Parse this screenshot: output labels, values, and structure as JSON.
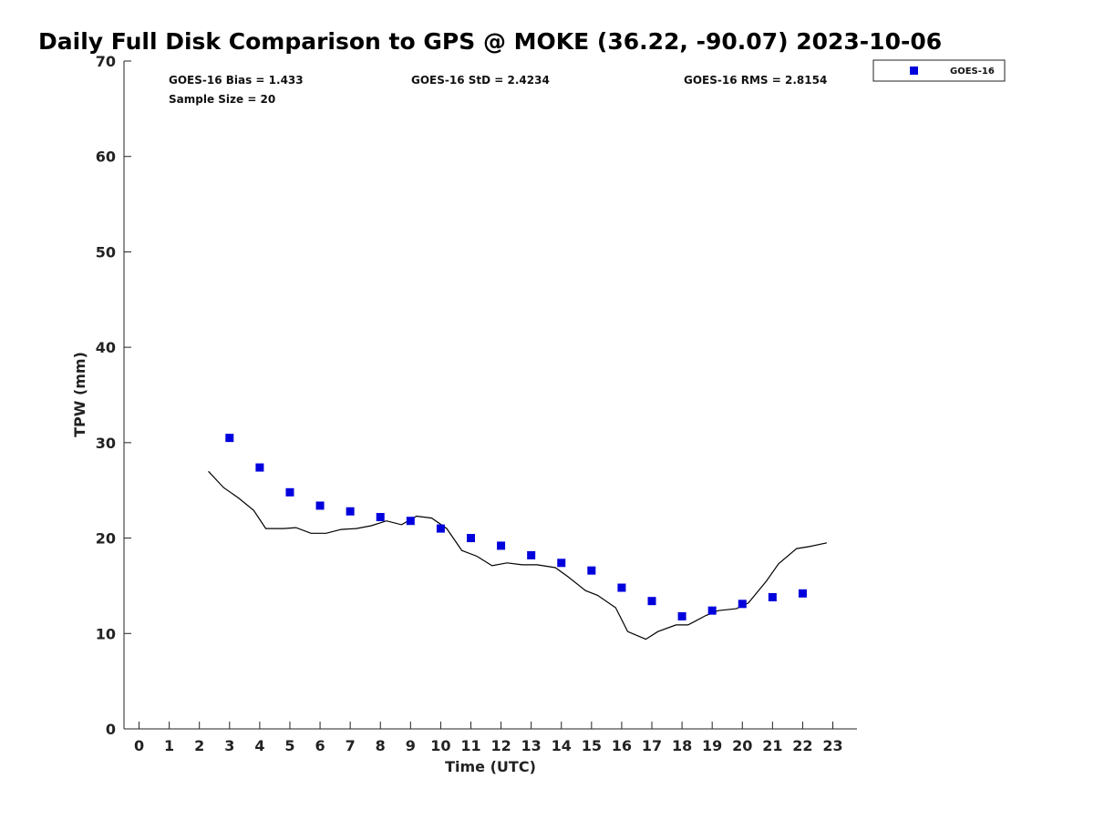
{
  "chart_data": {
    "type": "scatter",
    "title": "Daily Full Disk Comparison to GPS @ MOKE (36.22, -90.07) 2023-10-06",
    "xlabel": "Time (UTC)",
    "ylabel": "TPW (mm)",
    "xlim": [
      -0.5,
      23.8
    ],
    "ylim": [
      0,
      70
    ],
    "xticks": [
      0,
      1,
      2,
      3,
      4,
      5,
      6,
      7,
      8,
      9,
      10,
      11,
      12,
      13,
      14,
      15,
      16,
      17,
      18,
      19,
      20,
      21,
      22,
      23
    ],
    "yticks": [
      0,
      10,
      20,
      30,
      40,
      50,
      60,
      70
    ],
    "grid": false,
    "legend_position": "top-right",
    "stats": {
      "bias": "GOES-16 Bias = 1.433",
      "std": "GOES-16 StD = 2.4234",
      "rms": "GOES-16 RMS = 2.8154",
      "sample": "Sample Size = 20"
    },
    "series": [
      {
        "name": "GOES-16",
        "kind": "scatter",
        "marker": "square",
        "color": "#0000dd",
        "x": [
          3,
          4,
          5,
          6,
          7,
          8,
          9,
          10,
          11,
          12,
          13,
          14,
          15,
          16,
          17,
          18,
          19,
          20,
          21,
          22
        ],
        "y": [
          30.5,
          27.4,
          24.8,
          23.4,
          22.8,
          22.2,
          21.8,
          21.0,
          20.0,
          19.2,
          18.2,
          17.4,
          16.6,
          14.8,
          13.4,
          11.8,
          12.4,
          13.1,
          13.8,
          14.2
        ]
      },
      {
        "kind": "line",
        "color": "#000000",
        "x": [
          2.3,
          2.8,
          3.3,
          3.8,
          4.2,
          4.8,
          5.2,
          5.7,
          6.2,
          6.7,
          7.2,
          7.7,
          8.2,
          8.7,
          9.2,
          9.7,
          10.2,
          10.7,
          11.2,
          11.7,
          12.2,
          12.7,
          13.2,
          13.8,
          14.2,
          14.8,
          15.2,
          15.8,
          16.2,
          16.8,
          17.2,
          17.8,
          18.2,
          18.8,
          19.2,
          19.8,
          20.2,
          20.8,
          21.2,
          21.8,
          22.2,
          22.8
        ],
        "y": [
          27.0,
          25.3,
          24.2,
          22.9,
          21.0,
          21.0,
          21.1,
          20.5,
          20.5,
          20.9,
          21.0,
          21.3,
          21.8,
          21.4,
          22.3,
          22.1,
          21.0,
          18.7,
          18.1,
          17.1,
          17.4,
          17.2,
          17.2,
          16.9,
          16.0,
          14.5,
          14.0,
          12.7,
          10.2,
          9.4,
          10.2,
          10.9,
          10.9,
          11.9,
          12.4,
          12.6,
          13.2,
          15.5,
          17.3,
          18.9,
          19.1,
          19.5
        ]
      }
    ]
  }
}
